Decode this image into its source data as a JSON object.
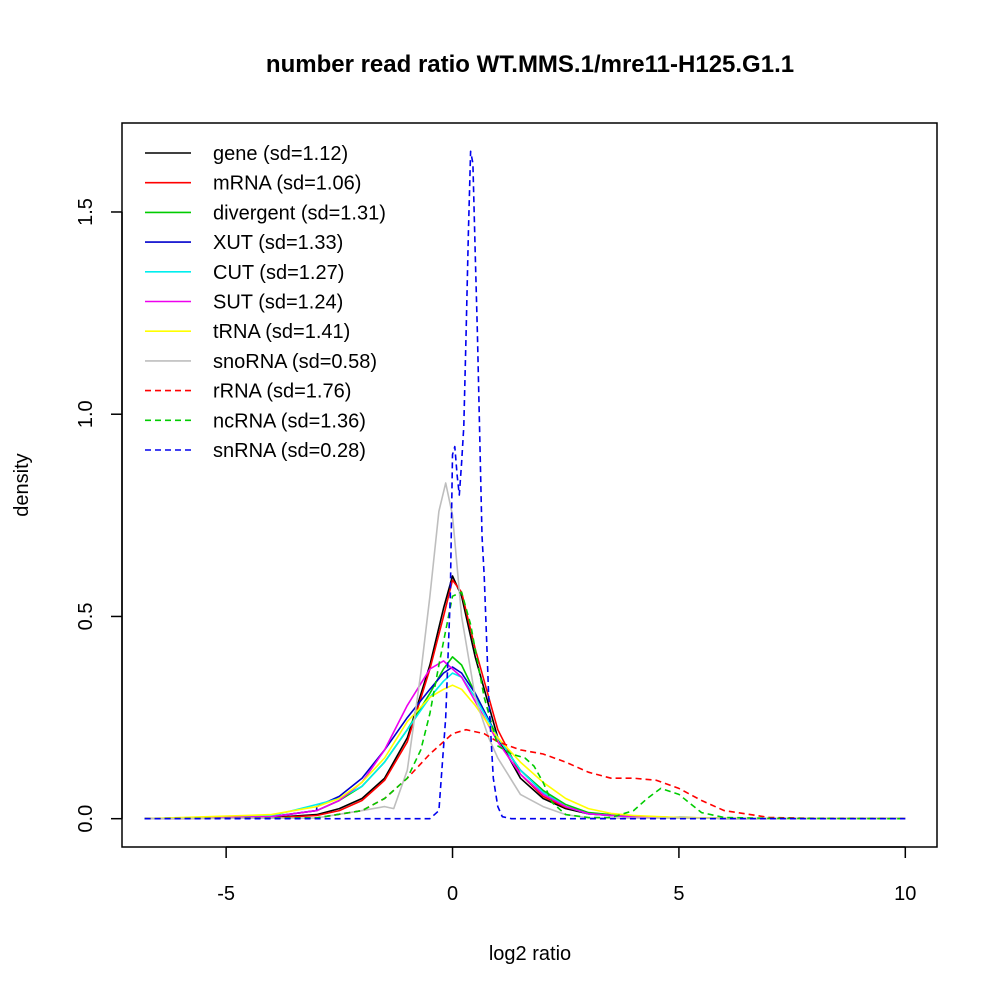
{
  "chart_data": {
    "type": "line",
    "title": "number read ratio WT.MMS.1/mre11-H125.G1.1",
    "xlabel": "log2 ratio",
    "ylabel": "density",
    "xlim": [
      -7.3,
      10.7
    ],
    "ylim": [
      -0.07,
      1.72
    ],
    "x_ticks": [
      -5,
      0,
      5,
      10
    ],
    "x_tick_labels": [
      "-5",
      "0",
      "5",
      "10"
    ],
    "y_ticks": [
      0.0,
      0.5,
      1.0,
      1.5
    ],
    "y_tick_labels": [
      "0.0",
      "0.5",
      "1.0",
      "1.5"
    ],
    "grid": false,
    "legend_position": "top-left",
    "series": [
      {
        "name": "gene (sd=1.12)",
        "color": "#000000",
        "dash": "solid",
        "x": [
          -6.8,
          -4,
          -3,
          -2.5,
          -2,
          -1.5,
          -1,
          -0.5,
          -0.2,
          0,
          0.2,
          0.5,
          1,
          1.5,
          2,
          2.5,
          3,
          4,
          6,
          10
        ],
        "y": [
          0,
          0.003,
          0.01,
          0.025,
          0.05,
          0.1,
          0.2,
          0.38,
          0.52,
          0.6,
          0.55,
          0.4,
          0.2,
          0.1,
          0.05,
          0.025,
          0.012,
          0.004,
          0.001,
          0
        ]
      },
      {
        "name": "mRNA (sd=1.06)",
        "color": "#ff0000",
        "dash": "solid",
        "x": [
          -6.8,
          -4,
          -3,
          -2.5,
          -2,
          -1.5,
          -1,
          -0.5,
          -0.2,
          0,
          0.2,
          0.5,
          1,
          1.5,
          2,
          2.5,
          3,
          4,
          6,
          10
        ],
        "y": [
          0,
          0.002,
          0.008,
          0.02,
          0.045,
          0.095,
          0.19,
          0.37,
          0.5,
          0.59,
          0.56,
          0.42,
          0.22,
          0.11,
          0.055,
          0.028,
          0.014,
          0.005,
          0.001,
          0
        ]
      },
      {
        "name": "divergent (sd=1.31)",
        "color": "#00cc00",
        "dash": "solid",
        "x": [
          -6.8,
          -4,
          -3,
          -2.5,
          -2,
          -1.5,
          -1,
          -0.5,
          -0.2,
          0,
          0.2,
          0.5,
          1,
          1.5,
          2,
          2.5,
          3,
          4,
          6,
          10
        ],
        "y": [
          0,
          0.005,
          0.02,
          0.045,
          0.08,
          0.14,
          0.22,
          0.31,
          0.37,
          0.4,
          0.38,
          0.31,
          0.2,
          0.12,
          0.07,
          0.035,
          0.015,
          0.005,
          0.001,
          0
        ]
      },
      {
        "name": "XUT (sd=1.33)",
        "color": "#0000cc",
        "dash": "solid",
        "x": [
          -6.8,
          -4,
          -3,
          -3,
          -2.5,
          -2,
          -1.5,
          -1,
          -0.5,
          -0.2,
          0,
          0.2,
          0.5,
          1,
          1.5,
          2,
          2.5,
          3,
          4,
          6,
          10
        ],
        "y": [
          0,
          0.005,
          0.02,
          0.03,
          0.055,
          0.1,
          0.17,
          0.25,
          0.32,
          0.36,
          0.375,
          0.36,
          0.31,
          0.2,
          0.12,
          0.065,
          0.03,
          0.012,
          0.004,
          0.001,
          0
        ]
      },
      {
        "name": "CUT (sd=1.27)",
        "color": "#00eeee",
        "dash": "solid",
        "x": [
          -6.8,
          -4,
          -3,
          -2.5,
          -2,
          -1.5,
          -1,
          -0.5,
          -0.2,
          0,
          0.2,
          0.5,
          1,
          1.5,
          2,
          2.5,
          3,
          4,
          6,
          10
        ],
        "y": [
          0,
          0.007,
          0.035,
          0.05,
          0.08,
          0.14,
          0.22,
          0.3,
          0.34,
          0.36,
          0.35,
          0.3,
          0.2,
          0.12,
          0.065,
          0.03,
          0.012,
          0.004,
          0.001,
          0
        ]
      },
      {
        "name": "SUT (sd=1.24)",
        "color": "#ee00ee",
        "dash": "solid",
        "x": [
          -6.8,
          -4,
          -3,
          -2.5,
          -2,
          -1.5,
          -1,
          -0.5,
          -0.2,
          0,
          0.2,
          0.5,
          1,
          1.5,
          2,
          2.5,
          3,
          4,
          6,
          10
        ],
        "y": [
          0,
          0.005,
          0.02,
          0.045,
          0.09,
          0.17,
          0.28,
          0.37,
          0.39,
          0.37,
          0.35,
          0.29,
          0.19,
          0.11,
          0.06,
          0.03,
          0.012,
          0.004,
          0.001,
          0
        ]
      },
      {
        "name": "tRNA (sd=1.41)",
        "color": "#ffff00",
        "dash": "solid",
        "x": [
          -6.8,
          -4,
          -3,
          -2.5,
          -2,
          -1.5,
          -1,
          -0.5,
          -0.2,
          0,
          0.2,
          0.5,
          1,
          1.5,
          2,
          2.5,
          3,
          3.5,
          4,
          5,
          7,
          10
        ],
        "y": [
          0,
          0.01,
          0.03,
          0.05,
          0.09,
          0.15,
          0.24,
          0.3,
          0.32,
          0.33,
          0.32,
          0.28,
          0.2,
          0.14,
          0.09,
          0.05,
          0.025,
          0.013,
          0.008,
          0.003,
          0.001,
          0
        ]
      },
      {
        "name": "snoRNA (sd=0.58)",
        "color": "#bebebe",
        "dash": "solid",
        "x": [
          -6.8,
          -3,
          -2,
          -1.5,
          -1.3,
          -1,
          -0.7,
          -0.5,
          -0.3,
          -0.15,
          0,
          0.2,
          0.5,
          0.8,
          1,
          1.5,
          2,
          2.5,
          3,
          10
        ],
        "y": [
          0,
          0.002,
          0.02,
          0.03,
          0.025,
          0.12,
          0.36,
          0.55,
          0.76,
          0.83,
          0.75,
          0.5,
          0.3,
          0.2,
          0.15,
          0.06,
          0.03,
          0.01,
          0.002,
          0
        ]
      },
      {
        "name": "rRNA (sd=1.76)",
        "color": "#ff0000",
        "dash": "dashed",
        "x": [
          -6.8,
          -3,
          -2,
          -1.5,
          -1,
          -0.5,
          0,
          0.3,
          0.7,
          1,
          1.5,
          2,
          2.5,
          3,
          3.5,
          4,
          4.5,
          5,
          5.5,
          6,
          7,
          8,
          10
        ],
        "y": [
          0,
          0.002,
          0.02,
          0.05,
          0.1,
          0.16,
          0.21,
          0.22,
          0.21,
          0.19,
          0.17,
          0.16,
          0.14,
          0.115,
          0.1,
          0.1,
          0.095,
          0.075,
          0.045,
          0.02,
          0.003,
          0.001,
          0
        ]
      },
      {
        "name": "ncRNA (sd=1.36)",
        "color": "#00cc00",
        "dash": "dashed",
        "x": [
          -6.8,
          -3,
          -2,
          -1.5,
          -1,
          -0.7,
          -0.5,
          -0.3,
          0,
          0.2,
          0.4,
          0.7,
          1,
          1.3,
          1.6,
          1.8,
          2,
          2.2,
          2.5,
          3,
          3.5,
          4,
          4.3,
          4.6,
          5,
          5.5,
          6,
          7,
          10
        ],
        "y": [
          0,
          0.002,
          0.02,
          0.05,
          0.1,
          0.17,
          0.26,
          0.38,
          0.55,
          0.56,
          0.48,
          0.3,
          0.18,
          0.16,
          0.15,
          0.13,
          0.09,
          0.04,
          0.01,
          0.003,
          0.003,
          0.02,
          0.05,
          0.075,
          0.06,
          0.015,
          0.003,
          0.001,
          0
        ]
      },
      {
        "name": "snRNA (sd=0.28)",
        "color": "#0000ee",
        "dash": "dashed",
        "x": [
          -6.8,
          -0.5,
          -0.3,
          -0.15,
          -0.05,
          0,
          0.05,
          0.1,
          0.15,
          0.2,
          0.25,
          0.3,
          0.35,
          0.4,
          0.45,
          0.5,
          0.55,
          0.6,
          0.65,
          0.7,
          0.75,
          0.8,
          0.85,
          0.9,
          1,
          1.1,
          1.3,
          10
        ],
        "y": [
          0,
          0,
          0.02,
          0.25,
          0.55,
          0.9,
          0.92,
          0.85,
          0.8,
          0.88,
          0.97,
          1.2,
          1.45,
          1.65,
          1.62,
          1.4,
          1.2,
          0.95,
          0.7,
          0.6,
          0.45,
          0.3,
          0.2,
          0.1,
          0.03,
          0.005,
          0,
          0
        ]
      }
    ]
  }
}
